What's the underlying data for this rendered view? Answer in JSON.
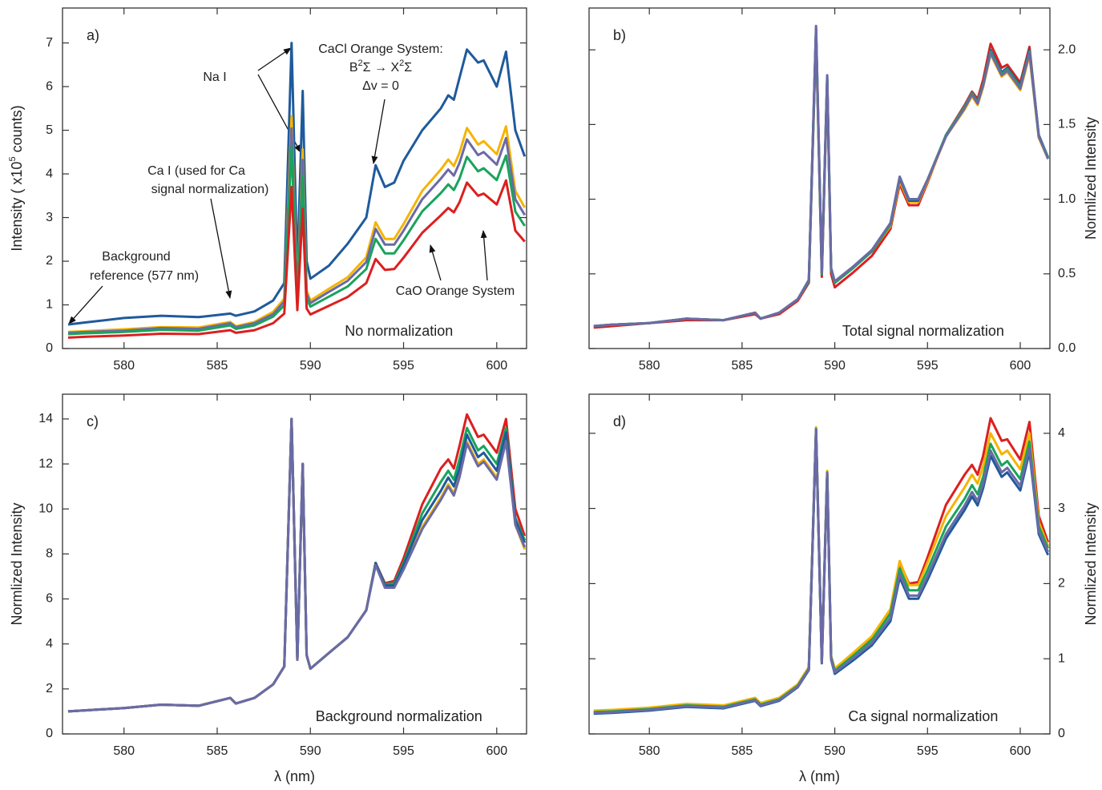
{
  "chart_data": [
    {
      "type": "line",
      "panel_label": "a)",
      "inner_label": "No normalization",
      "ylabel": [
        "Intensity ( x10",
        "5",
        " counts)"
      ],
      "yaxis": "left",
      "annotations": [
        "Na I",
        "CaCl Orange System:",
        [
          "B",
          "2",
          "Σ → X",
          "2",
          "Σ"
        ],
        "Δv = 0",
        "Ca I (used for Ca",
        "signal normalization)",
        "Background",
        "reference (577 nm)",
        "CaO Orange System"
      ],
      "x": [
        577,
        578,
        580,
        582,
        584,
        585.7,
        586,
        587,
        588,
        588.6,
        588.99,
        589.3,
        589.59,
        589.8,
        590,
        591,
        592,
        593,
        593.5,
        594,
        594.5,
        595,
        596,
        597,
        597.4,
        597.7,
        598,
        598.4,
        599,
        599.3,
        600,
        600.5,
        601,
        601.5
      ],
      "xlim": [
        576.7,
        601.6
      ],
      "ylim": [
        0,
        7.8
      ],
      "xticks": [
        580,
        585,
        590,
        595,
        600
      ],
      "yticks": [
        0,
        1,
        2,
        3,
        4,
        5,
        6,
        7
      ],
      "series": [
        {
          "color": "#1f5a9c",
          "values": [
            0.55,
            0.6,
            0.7,
            0.75,
            0.72,
            0.8,
            0.75,
            0.85,
            1.1,
            1.5,
            7.0,
            1.8,
            5.9,
            2.0,
            1.6,
            1.9,
            2.4,
            3.0,
            4.2,
            3.7,
            3.8,
            4.3,
            5.0,
            5.5,
            5.8,
            5.7,
            6.2,
            6.85,
            6.55,
            6.6,
            6.0,
            6.8,
            5.0,
            4.4
          ]
        },
        {
          "color": "#f5b400",
          "values": [
            0.38,
            0.4,
            0.44,
            0.49,
            0.48,
            0.61,
            0.51,
            0.61,
            0.84,
            1.14,
            5.32,
            1.25,
            4.56,
            1.33,
            1.1,
            1.37,
            1.63,
            2.09,
            2.89,
            2.51,
            2.51,
            2.85,
            3.61,
            4.1,
            4.33,
            4.18,
            4.48,
            5.05,
            4.67,
            4.75,
            4.45,
            5.09,
            3.61,
            3.23
          ]
        },
        {
          "color": "#6b6aa6",
          "values": [
            0.36,
            0.38,
            0.41,
            0.47,
            0.45,
            0.58,
            0.49,
            0.58,
            0.79,
            1.08,
            5.04,
            1.19,
            4.32,
            1.26,
            1.04,
            1.3,
            1.55,
            1.98,
            2.74,
            2.38,
            2.38,
            2.7,
            3.42,
            3.89,
            4.1,
            3.96,
            4.25,
            4.79,
            4.43,
            4.5,
            4.21,
            4.82,
            3.42,
            3.06
          ]
        },
        {
          "color": "#1aa35c",
          "values": [
            0.33,
            0.35,
            0.38,
            0.43,
            0.41,
            0.53,
            0.45,
            0.53,
            0.73,
            0.99,
            4.62,
            1.09,
            3.96,
            1.16,
            0.96,
            1.19,
            1.42,
            1.82,
            2.51,
            2.18,
            2.18,
            2.48,
            3.14,
            3.56,
            3.76,
            3.63,
            3.89,
            4.39,
            4.06,
            4.13,
            3.86,
            4.42,
            3.14,
            2.81
          ]
        },
        {
          "color": "#dc1f1f",
          "values": [
            0.25,
            0.27,
            0.3,
            0.34,
            0.33,
            0.42,
            0.36,
            0.42,
            0.58,
            0.8,
            3.7,
            0.88,
            3.2,
            0.92,
            0.78,
            0.98,
            1.18,
            1.5,
            2.05,
            1.8,
            1.82,
            2.08,
            2.65,
            3.05,
            3.22,
            3.12,
            3.35,
            3.8,
            3.5,
            3.55,
            3.3,
            3.85,
            2.7,
            2.45
          ]
        }
      ]
    },
    {
      "type": "line",
      "panel_label": "b)",
      "inner_label": "Total signal normalization",
      "ylabel": [
        "Normlized Intensity"
      ],
      "yaxis": "right",
      "x": [
        577,
        578,
        580,
        582,
        584,
        585.7,
        586,
        587,
        588,
        588.6,
        588.99,
        589.3,
        589.59,
        589.8,
        590,
        591,
        592,
        593,
        593.5,
        594,
        594.5,
        595,
        596,
        597,
        597.4,
        597.7,
        598,
        598.4,
        599,
        599.3,
        600,
        600.5,
        601,
        601.5
      ],
      "xlim": [
        576.75,
        601.6
      ],
      "ylim": [
        0,
        2.28
      ],
      "xticks": [
        580,
        585,
        590,
        595,
        600
      ],
      "yticks": [
        {
          "value": 0,
          "label": "0.0"
        },
        0.5,
        {
          "value": 1,
          "label": "1.0"
        },
        1.5,
        {
          "value": 2,
          "label": "2.0"
        }
      ],
      "series": [
        {
          "color": "#dc1f1f",
          "values": [
            0.14,
            0.15,
            0.17,
            0.19,
            0.19,
            0.23,
            0.2,
            0.23,
            0.32,
            0.44,
            2.1,
            0.48,
            1.78,
            0.5,
            0.41,
            0.51,
            0.62,
            0.8,
            1.1,
            0.96,
            0.96,
            1.11,
            1.43,
            1.63,
            1.72,
            1.67,
            1.8,
            2.04,
            1.88,
            1.9,
            1.78,
            2.02,
            1.42,
            1.27
          ]
        },
        {
          "color": "#f5b400",
          "values": [
            0.15,
            0.16,
            0.17,
            0.2,
            0.19,
            0.24,
            0.2,
            0.24,
            0.33,
            0.45,
            2.12,
            0.5,
            1.8,
            0.53,
            0.44,
            0.54,
            0.65,
            0.82,
            1.12,
            0.98,
            0.98,
            1.12,
            1.42,
            1.6,
            1.69,
            1.63,
            1.75,
            1.97,
            1.82,
            1.85,
            1.73,
            1.96,
            1.41,
            1.27
          ]
        },
        {
          "color": "#1f5a9c",
          "values": [
            0.15,
            0.16,
            0.17,
            0.2,
            0.19,
            0.24,
            0.2,
            0.24,
            0.33,
            0.45,
            2.15,
            0.5,
            1.82,
            0.53,
            0.44,
            0.54,
            0.65,
            0.83,
            1.14,
            0.99,
            0.99,
            1.13,
            1.43,
            1.62,
            1.71,
            1.65,
            1.77,
            2.0,
            1.85,
            1.88,
            1.76,
            2.0,
            1.43,
            1.28
          ]
        },
        {
          "color": "#1aa35c",
          "values": [
            0.15,
            0.16,
            0.17,
            0.2,
            0.19,
            0.24,
            0.2,
            0.24,
            0.33,
            0.45,
            2.13,
            0.5,
            1.81,
            0.53,
            0.44,
            0.54,
            0.65,
            0.83,
            1.15,
            1.0,
            1.0,
            1.13,
            1.43,
            1.62,
            1.71,
            1.65,
            1.77,
            1.99,
            1.84,
            1.87,
            1.75,
            1.99,
            1.42,
            1.28
          ]
        },
        {
          "color": "#6b6aa6",
          "values": [
            0.15,
            0.16,
            0.17,
            0.2,
            0.19,
            0.24,
            0.2,
            0.24,
            0.33,
            0.46,
            2.16,
            0.51,
            1.83,
            0.54,
            0.45,
            0.55,
            0.66,
            0.84,
            1.15,
            1.0,
            1.0,
            1.13,
            1.42,
            1.61,
            1.7,
            1.64,
            1.76,
            1.98,
            1.83,
            1.86,
            1.74,
            1.98,
            1.42,
            1.27
          ]
        }
      ]
    },
    {
      "type": "line",
      "panel_label": "c)",
      "inner_label": "Background normalization",
      "ylabel": [
        "Normlized Intensity"
      ],
      "yaxis": "left",
      "xlabel": "λ (nm)",
      "x": [
        577,
        578,
        580,
        582,
        584,
        585.7,
        586,
        587,
        588,
        588.6,
        588.99,
        589.3,
        589.59,
        589.8,
        590,
        591,
        592,
        593,
        593.5,
        594,
        594.5,
        595,
        596,
        597,
        597.4,
        597.7,
        598,
        598.4,
        599,
        599.3,
        600,
        600.5,
        601,
        601.5
      ],
      "xlim": [
        576.7,
        601.6
      ],
      "ylim": [
        0,
        15.1
      ],
      "xticks": [
        580,
        585,
        590,
        595,
        600
      ],
      "yticks": [
        0,
        2,
        4,
        6,
        8,
        10,
        12,
        14
      ],
      "series": [
        {
          "color": "#dc1f1f",
          "values": [
            1.0,
            1.05,
            1.15,
            1.3,
            1.25,
            1.6,
            1.35,
            1.6,
            2.2,
            3.0,
            14.0,
            3.3,
            12.0,
            3.5,
            2.9,
            3.6,
            4.3,
            5.5,
            7.6,
            6.7,
            6.8,
            7.8,
            10.2,
            11.8,
            12.2,
            11.8,
            12.8,
            14.2,
            13.2,
            13.3,
            12.5,
            14.0,
            10.0,
            8.8
          ]
        },
        {
          "color": "#1aa35c",
          "values": [
            1.0,
            1.05,
            1.15,
            1.3,
            1.25,
            1.6,
            1.35,
            1.6,
            2.2,
            3.0,
            14.0,
            3.3,
            12.0,
            3.5,
            2.9,
            3.6,
            4.3,
            5.5,
            7.6,
            6.65,
            6.7,
            7.6,
            9.8,
            11.2,
            11.7,
            11.3,
            12.2,
            13.6,
            12.6,
            12.8,
            12.0,
            13.6,
            9.6,
            8.6
          ]
        },
        {
          "color": "#f5b400",
          "values": [
            1.0,
            1.05,
            1.15,
            1.3,
            1.25,
            1.6,
            1.35,
            1.6,
            2.2,
            3.0,
            14.0,
            3.3,
            12.0,
            3.5,
            2.9,
            3.6,
            4.3,
            5.5,
            7.6,
            6.55,
            6.5,
            7.3,
            9.2,
            10.5,
            11.1,
            10.7,
            11.5,
            13.0,
            12.0,
            12.2,
            11.4,
            13.1,
            9.3,
            8.2
          ]
        },
        {
          "color": "#1f5a9c",
          "values": [
            1.0,
            1.05,
            1.15,
            1.3,
            1.25,
            1.6,
            1.35,
            1.6,
            2.2,
            3.0,
            14.0,
            3.3,
            12.0,
            3.5,
            2.9,
            3.6,
            4.3,
            5.5,
            7.6,
            6.6,
            6.6,
            7.5,
            9.5,
            10.8,
            11.4,
            11.0,
            11.8,
            13.3,
            12.3,
            12.5,
            11.7,
            13.4,
            9.5,
            8.5
          ]
        },
        {
          "color": "#6b6aa6",
          "values": [
            1.0,
            1.05,
            1.15,
            1.3,
            1.25,
            1.6,
            1.35,
            1.6,
            2.2,
            3.0,
            14.0,
            3.3,
            12.0,
            3.5,
            2.9,
            3.6,
            4.3,
            5.5,
            7.5,
            6.5,
            6.5,
            7.3,
            9.1,
            10.4,
            11.0,
            10.6,
            11.4,
            12.9,
            11.9,
            12.1,
            11.3,
            13.0,
            9.3,
            8.3
          ]
        }
      ]
    },
    {
      "type": "line",
      "panel_label": "d)",
      "inner_label": "Ca signal normalization",
      "ylabel": [
        "Normlized Intensity"
      ],
      "yaxis": "right",
      "xlabel": "λ (nm)",
      "x": [
        577,
        578,
        580,
        582,
        584,
        585.7,
        586,
        587,
        588,
        588.6,
        588.99,
        589.3,
        589.59,
        589.8,
        590,
        591,
        592,
        593,
        593.5,
        594,
        594.5,
        595,
        596,
        597,
        597.4,
        597.7,
        598,
        598.4,
        599,
        599.3,
        600,
        600.5,
        601,
        601.5
      ],
      "xlim": [
        576.75,
        601.6
      ],
      "ylim": [
        0,
        4.52
      ],
      "xticks": [
        580,
        585,
        590,
        595,
        600
      ],
      "yticks": [
        0,
        1,
        2,
        3,
        4
      ],
      "series": [
        {
          "color": "#dc1f1f",
          "values": [
            0.29,
            0.3,
            0.33,
            0.38,
            0.36,
            0.46,
            0.39,
            0.46,
            0.64,
            0.87,
            4.06,
            0.96,
            3.48,
            1.02,
            0.84,
            1.05,
            1.28,
            1.65,
            2.28,
            2.0,
            2.02,
            2.35,
            3.05,
            3.45,
            3.58,
            3.45,
            3.7,
            4.2,
            3.9,
            3.92,
            3.65,
            4.15,
            2.9,
            2.55
          ]
        },
        {
          "color": "#f5b400",
          "values": [
            0.31,
            0.32,
            0.35,
            0.4,
            0.38,
            0.48,
            0.41,
            0.48,
            0.66,
            0.89,
            4.08,
            0.98,
            3.5,
            1.04,
            0.87,
            1.08,
            1.3,
            1.66,
            2.3,
            1.98,
            1.98,
            2.28,
            2.9,
            3.28,
            3.45,
            3.33,
            3.56,
            4.0,
            3.72,
            3.77,
            3.52,
            4.0,
            2.82,
            2.5
          ]
        },
        {
          "color": "#1aa35c",
          "values": [
            0.29,
            0.3,
            0.33,
            0.38,
            0.36,
            0.46,
            0.39,
            0.46,
            0.64,
            0.87,
            4.06,
            0.96,
            3.48,
            1.02,
            0.84,
            1.04,
            1.25,
            1.6,
            2.2,
            1.91,
            1.91,
            2.18,
            2.76,
            3.13,
            3.31,
            3.19,
            3.42,
            3.86,
            3.57,
            3.63,
            3.39,
            3.89,
            2.76,
            2.47
          ]
        },
        {
          "color": "#1f5a9c",
          "values": [
            0.27,
            0.28,
            0.31,
            0.36,
            0.34,
            0.44,
            0.37,
            0.44,
            0.62,
            0.85,
            4.04,
            0.94,
            3.46,
            0.99,
            0.8,
            0.98,
            1.18,
            1.5,
            2.08,
            1.8,
            1.8,
            2.05,
            2.6,
            2.98,
            3.16,
            3.04,
            3.27,
            3.7,
            3.42,
            3.48,
            3.24,
            3.75,
            2.66,
            2.38
          ]
        },
        {
          "color": "#6b6aa6",
          "values": [
            0.28,
            0.29,
            0.32,
            0.37,
            0.35,
            0.45,
            0.38,
            0.45,
            0.63,
            0.86,
            4.05,
            0.95,
            3.47,
            1.0,
            0.82,
            1.01,
            1.21,
            1.54,
            2.13,
            1.84,
            1.84,
            2.1,
            2.66,
            3.04,
            3.22,
            3.1,
            3.33,
            3.77,
            3.48,
            3.54,
            3.3,
            3.8,
            2.7,
            2.42
          ]
        }
      ]
    }
  ]
}
